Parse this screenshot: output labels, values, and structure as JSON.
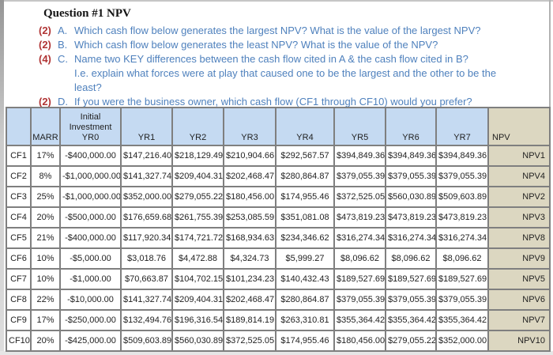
{
  "colors": {
    "question_text_blue": "#4f81bd",
    "points_red": "#b03434",
    "header_fill_blue": "#c5daf2",
    "npv_column_tan": "#dcd7c1",
    "grid_border_gray": "#7f7f7f"
  },
  "page": {
    "title": "Question #1 NPV",
    "questions": [
      {
        "points": "(2)",
        "letter": "A.",
        "text": "Which cash flow below generates the largest NPV?  What is the value of the largest NPV?"
      },
      {
        "points": "(2)",
        "letter": "B.",
        "text": "Which cash flow below generates the least NPV?  What is the value of the NPV?"
      },
      {
        "points": "(4)",
        "letter": "C.",
        "text": "Name two KEY differences between the cash flow cited in A & the cash flow cited in B?",
        "cont": [
          "I.e. explain what forces were at play that caused one to be the largest and the other to be the",
          "least?"
        ]
      },
      {
        "points": "(2)",
        "letter": "D.",
        "text": "If you were the business owner, which cash flow (CF1 through CF10) would you prefer?"
      }
    ]
  },
  "table": {
    "headers": [
      "",
      "MARR",
      "Initial\nInvestment\nYR0",
      "YR1",
      "YR2",
      "YR3",
      "YR4",
      "YR5",
      "YR6",
      "YR7",
      "NPV"
    ],
    "rows": [
      [
        "CF1",
        "17%",
        "-$400,000.00",
        "$147,216.40",
        "$218,129.49",
        "$210,904.66",
        "$292,567.57",
        "$394,849.36",
        "$394,849.36",
        "$394,849.36",
        "NPV1"
      ],
      [
        "CF2",
        "8%",
        "-$1,000,000.00",
        "$141,327.74",
        "$209,404.31",
        "$202,468.47",
        "$280,864.87",
        "$379,055.39",
        "$379,055.39",
        "$379,055.39",
        "NPV4"
      ],
      [
        "CF3",
        "25%",
        "-$1,000,000.00",
        "$352,000.00",
        "$279,055.22",
        "$180,456.00",
        "$174,955.46",
        "$372,525.05",
        "$560,030.89",
        "$509,603.89",
        "NPV2"
      ],
      [
        "CF4",
        "20%",
        "-$500,000.00",
        "$176,659.68",
        "$261,755.39",
        "$253,085.59",
        "$351,081.08",
        "$473,819.23",
        "$473,819.23",
        "$473,819.23",
        "NPV3"
      ],
      [
        "CF5",
        "21%",
        "-$400,000.00",
        "$117,920.34",
        "$174,721.72",
        "$168,934.63",
        "$234,346.62",
        "$316,274.34",
        "$316,274.34",
        "$316,274.34",
        "NPV8"
      ],
      [
        "CF6",
        "10%",
        "-$5,000.00",
        "$3,018.76",
        "$4,472.88",
        "$4,324.73",
        "$5,999.27",
        "$8,096.62",
        "$8,096.62",
        "$8,096.62",
        "NPV9"
      ],
      [
        "CF7",
        "10%",
        "-$1,000.00",
        "$70,663.87",
        "$104,702.15",
        "$101,234.23",
        "$140,432.43",
        "$189,527.69",
        "$189,527.69",
        "$189,527.69",
        "NPV5"
      ],
      [
        "CF8",
        "22%",
        "-$10,000.00",
        "$141,327.74",
        "$209,404.31",
        "$202,468.47",
        "$280,864.87",
        "$379,055.39",
        "$379,055.39",
        "$379,055.39",
        "NPV6"
      ],
      [
        "CF9",
        "17%",
        "-$250,000.00",
        "$132,494.76",
        "$196,316.54",
        "$189,814.19",
        "$263,310.81",
        "$355,364.42",
        "$355,364.42",
        "$355,364.42",
        "NPV7"
      ],
      [
        "CF10",
        "20%",
        "-$425,000.00",
        "$509,603.89",
        "$560,030.89",
        "$372,525.05",
        "$174,955.46",
        "$180,456.00",
        "$279,055.22",
        "$352,000.00",
        "NPV10"
      ]
    ]
  }
}
